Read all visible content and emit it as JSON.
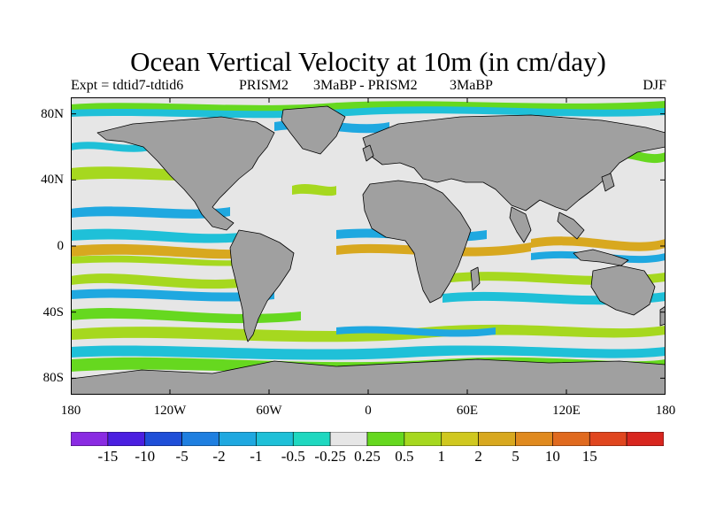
{
  "title": "Ocean Vertical Velocity at 10m (in cm/day)",
  "subtitle": {
    "expt": "Expt = tdtid7-tdtid6",
    "part_a": "PRISM2",
    "part_b": "3MaBP - PRISM2",
    "part_c": "3MaBP",
    "season": "DJF"
  },
  "map": {
    "projection": "cylindrical equidistant",
    "lon_range": [
      -180,
      180
    ],
    "lat_range": [
      -90,
      90
    ],
    "land_color": "#a0a0a0",
    "coastline_color": "#000000",
    "lat_ticks": [
      {
        "value": 80,
        "label": "80N"
      },
      {
        "value": 40,
        "label": "40N"
      },
      {
        "value": 0,
        "label": "0"
      },
      {
        "value": -40,
        "label": "40S"
      },
      {
        "value": -80,
        "label": "80S"
      }
    ],
    "lon_ticks": [
      {
        "value": -180,
        "label": "180"
      },
      {
        "value": -120,
        "label": "120W"
      },
      {
        "value": -60,
        "label": "60W"
      },
      {
        "value": 0,
        "label": "0"
      },
      {
        "value": 60,
        "label": "60E"
      },
      {
        "value": 120,
        "label": "120E"
      },
      {
        "value": 180,
        "label": "180"
      }
    ]
  },
  "colorbar": {
    "colors": [
      "#8a2be2",
      "#4b1fe0",
      "#1f4fd8",
      "#1f7fe0",
      "#1fa8e0",
      "#1fc0d8",
      "#1fd8c0",
      "#e6e6e6",
      "#66d81f",
      "#a6d81f",
      "#d0c81f",
      "#d8a81f",
      "#e08a1f",
      "#e06a1f",
      "#e0461f",
      "#d8261f"
    ],
    "labels": [
      "-15",
      "-10",
      "-5",
      "-2",
      "-1",
      "-0.5",
      "-0.25",
      "0.25",
      "0.5",
      "1",
      "2",
      "5",
      "10",
      "15"
    ]
  }
}
